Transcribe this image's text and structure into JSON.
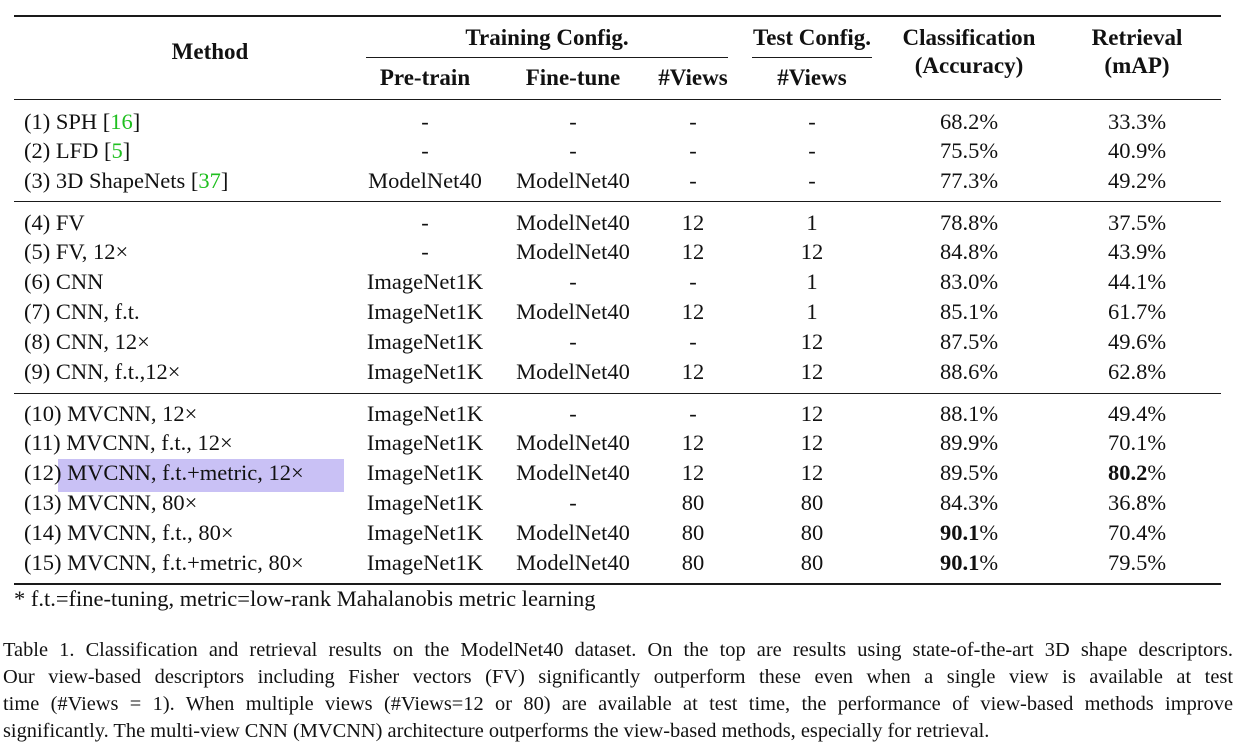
{
  "table": {
    "headers": {
      "method": "Method",
      "training_config": "Training Config.",
      "test_config": "Test Config.",
      "pretrain": "Pre-train",
      "finetune": "Fine-tune",
      "train_views": "#Views",
      "test_views": "#Views",
      "classification_line1": "Classification",
      "classification_line2": "(Accuracy)",
      "retrieval_line1": "Retrieval",
      "retrieval_line2": "(mAP)"
    },
    "rows": [
      {
        "prefix": "(1) SPH [",
        "cite": "16",
        "suffix": "]",
        "pretrain": "-",
        "finetune": "-",
        "train_views": "-",
        "test_views": "-",
        "acc": "68.2",
        "acc_pct": "%",
        "map": "33.3",
        "map_pct": "%"
      },
      {
        "prefix": "(2) LFD [",
        "cite": "5",
        "suffix": "]",
        "pretrain": "-",
        "finetune": "-",
        "train_views": "-",
        "test_views": "-",
        "acc": "75.5",
        "acc_pct": "%",
        "map": "40.9",
        "map_pct": "%"
      },
      {
        "prefix": "(3) 3D ShapeNets [",
        "cite": "37",
        "suffix": "]",
        "pretrain": "ModelNet40",
        "finetune": "ModelNet40",
        "train_views": "-",
        "test_views": "-",
        "acc": "77.3",
        "acc_pct": "%",
        "map": "49.2",
        "map_pct": "%"
      },
      {
        "prefix": "(4) FV",
        "cite": "",
        "suffix": "",
        "pretrain": "-",
        "finetune": "ModelNet40",
        "train_views": "12",
        "test_views": "1",
        "acc": "78.8",
        "acc_pct": "%",
        "map": "37.5",
        "map_pct": "%"
      },
      {
        "prefix": "(5) FV, 12×",
        "cite": "",
        "suffix": "",
        "pretrain": "-",
        "finetune": "ModelNet40",
        "train_views": "12",
        "test_views": "12",
        "acc": "84.8",
        "acc_pct": "%",
        "map": "43.9",
        "map_pct": "%"
      },
      {
        "prefix": "(6) CNN",
        "cite": "",
        "suffix": "",
        "pretrain": "ImageNet1K",
        "finetune": "-",
        "train_views": "-",
        "test_views": "1",
        "acc": "83.0",
        "acc_pct": "%",
        "map": "44.1",
        "map_pct": "%"
      },
      {
        "prefix": "(7) CNN, f.t.",
        "cite": "",
        "suffix": "",
        "pretrain": "ImageNet1K",
        "finetune": "ModelNet40",
        "train_views": "12",
        "test_views": "1",
        "acc": "85.1",
        "acc_pct": "%",
        "map": "61.7",
        "map_pct": "%"
      },
      {
        "prefix": "(8) CNN, 12×",
        "cite": "",
        "suffix": "",
        "pretrain": "ImageNet1K",
        "finetune": "-",
        "train_views": "-",
        "test_views": "12",
        "acc": "87.5",
        "acc_pct": "%",
        "map": "49.6",
        "map_pct": "%"
      },
      {
        "prefix": "(9) CNN, f.t.,12×",
        "cite": "",
        "suffix": "",
        "pretrain": "ImageNet1K",
        "finetune": "ModelNet40",
        "train_views": "12",
        "test_views": "12",
        "acc": "88.6",
        "acc_pct": "%",
        "map": "62.8",
        "map_pct": "%"
      },
      {
        "prefix": "(10) MVCNN, 12×",
        "cite": "",
        "suffix": "",
        "pretrain": "ImageNet1K",
        "finetune": "-",
        "train_views": "-",
        "test_views": "12",
        "acc": "88.1",
        "acc_pct": "%",
        "map": "49.4",
        "map_pct": "%"
      },
      {
        "prefix": "(11) MVCNN, f.t., 12×",
        "cite": "",
        "suffix": "",
        "pretrain": "ImageNet1K",
        "finetune": "ModelNet40",
        "train_views": "12",
        "test_views": "12",
        "acc": "89.9",
        "acc_pct": "%",
        "map": "70.1",
        "map_pct": "%"
      },
      {
        "prefix": "(12) MVCNN, f.t.+metric, 12×",
        "cite": "",
        "suffix": "",
        "pretrain": "ImageNet1K",
        "finetune": "ModelNet40",
        "train_views": "12",
        "test_views": "12",
        "acc": "89.5",
        "acc_pct": "%",
        "map": "80.2",
        "map_pct": "%",
        "map_bold": true,
        "highlighted": true
      },
      {
        "prefix": "(13) MVCNN, 80×",
        "cite": "",
        "suffix": "",
        "pretrain": "ImageNet1K",
        "finetune": "-",
        "train_views": "80",
        "test_views": "80",
        "acc": "84.3",
        "acc_pct": "%",
        "map": "36.8",
        "map_pct": "%"
      },
      {
        "prefix": "(14) MVCNN, f.t., 80×",
        "cite": "",
        "suffix": "",
        "pretrain": "ImageNet1K",
        "finetune": "ModelNet40",
        "train_views": "80",
        "test_views": "80",
        "acc": "90.1",
        "acc_pct": "%",
        "acc_bold": true,
        "map": "70.4",
        "map_pct": "%"
      },
      {
        "prefix": "(15) MVCNN, f.t.+metric, 80×",
        "cite": "",
        "suffix": "",
        "pretrain": "ImageNet1K",
        "finetune": "ModelNet40",
        "train_views": "80",
        "test_views": "80",
        "acc": "90.1",
        "acc_pct": "%",
        "acc_bold": true,
        "map": "79.5",
        "map_pct": "%"
      }
    ],
    "footnote": "*  f.t.=fine-tuning, metric=low-rank Mahalanobis metric learning"
  },
  "caption": {
    "lines": [
      "Table 1. Classification and retrieval results on the ModelNet40 dataset. On the top are results using state-of-the-art 3D shape descriptors.",
      "Our view-based descriptors including Fisher vectors (FV) significantly outperform these even when a single view is available at test",
      "time (#Views = 1). When multiple views (#Views=12 or 80) are available at test time, the performance of view-based methods improve",
      "significantly. The multi-view CNN (MVCNN) architecture outperforms the view-based methods, especially for retrieval."
    ]
  },
  "colors": {
    "citation": "#1fbf1f",
    "highlight": "#c9c1f5",
    "text": "#111111"
  }
}
